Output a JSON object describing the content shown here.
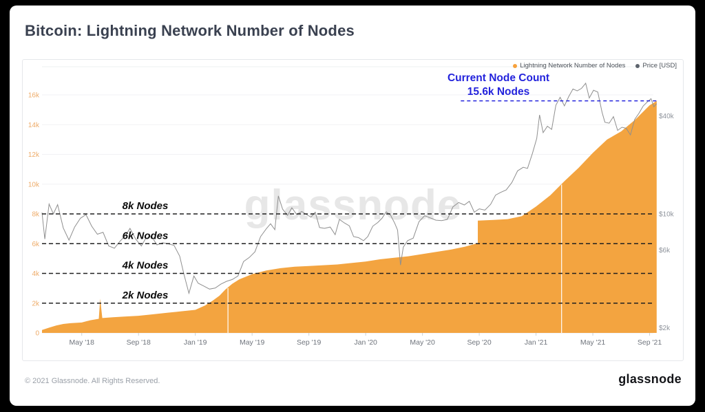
{
  "header": {
    "title": "Bitcoin: Lightning Network Number of Nodes"
  },
  "legend": {
    "items": [
      {
        "label": "Lightning Network Number of Nodes",
        "color": "#f7a13b"
      },
      {
        "label": "Price [USD]",
        "color": "#5d646d"
      }
    ]
  },
  "watermark": "glassnode",
  "annotation": {
    "line1": "Current Node Count",
    "line2": "15.6k Nodes"
  },
  "footer": {
    "copyright": "© 2021 Glassnode. All Rights Reserved.",
    "logo": "glassnode"
  },
  "chart_data": {
    "type": "area+line",
    "title": "Bitcoin: Lightning Network Number of Nodes",
    "x_unit": "months since Feb 2018",
    "colors": {
      "area": "#f3a440",
      "price_line": "#8f8f8f",
      "left_axis_text": "#eeab68",
      "right_axis_text": "#8e939b",
      "x_axis_text": "#6f747c",
      "guide_line": "#1f1f1f",
      "guide_text": "#0c0c0c",
      "annotation_blue": "#2323dc",
      "gridline": "#f1f2f4"
    },
    "x_ticks": [
      {
        "m": 2.8,
        "label": "May '18"
      },
      {
        "m": 6.8,
        "label": "Sep '18"
      },
      {
        "m": 10.8,
        "label": "Jan '19"
      },
      {
        "m": 14.8,
        "label": "May '19"
      },
      {
        "m": 18.8,
        "label": "Sep '19"
      },
      {
        "m": 22.8,
        "label": "Jan '20"
      },
      {
        "m": 26.8,
        "label": "May '20"
      },
      {
        "m": 30.8,
        "label": "Sep '20"
      },
      {
        "m": 34.8,
        "label": "Jan '21"
      },
      {
        "m": 38.8,
        "label": "May '21"
      },
      {
        "m": 42.8,
        "label": "Sep '21"
      }
    ],
    "y_left": {
      "unit": "nodes (thousands)",
      "range_k": [
        0,
        16
      ],
      "ticks": [
        {
          "v": 0,
          "label": "0"
        },
        {
          "v": 2,
          "label": "2k"
        },
        {
          "v": 4,
          "label": "4k"
        },
        {
          "v": 6,
          "label": "6k"
        },
        {
          "v": 8,
          "label": "8k"
        },
        {
          "v": 10,
          "label": "10k"
        },
        {
          "v": 12,
          "label": "12k"
        },
        {
          "v": 14,
          "label": "14k"
        },
        {
          "v": 16,
          "label": "16k"
        }
      ]
    },
    "y_right": {
      "unit": "USD",
      "scale": "log",
      "ticks": [
        {
          "usd": 2000,
          "label": "$2k"
        },
        {
          "usd": 6000,
          "label": "$6k"
        },
        {
          "usd": 10000,
          "label": "$10k"
        },
        {
          "usd": 40000,
          "label": "$40k"
        }
      ]
    },
    "node_guides": [
      {
        "v": 8,
        "label": "8k Nodes"
      },
      {
        "v": 6,
        "label": "6k Nodes"
      },
      {
        "v": 4,
        "label": "4k Nodes"
      },
      {
        "v": 2,
        "label": "2k Nodes"
      }
    ],
    "annotation": {
      "value_k": 15.6,
      "line_start_m": 29.5,
      "line_end_m": 43.45
    },
    "gaps_m": [
      13.1,
      36.6
    ],
    "series": [
      {
        "name": "Lightning Network Number of Nodes",
        "type": "area",
        "unit": "k nodes",
        "points": [
          [
            0,
            0.2
          ],
          [
            0.5,
            0.35
          ],
          [
            1,
            0.5
          ],
          [
            1.5,
            0.6
          ],
          [
            2,
            0.65
          ],
          [
            2.8,
            0.7
          ],
          [
            3.4,
            0.85
          ],
          [
            4.0,
            0.95
          ],
          [
            4.1,
            2.3
          ],
          [
            4.25,
            1.0
          ],
          [
            5,
            1.05
          ],
          [
            5.8,
            1.1
          ],
          [
            6.8,
            1.15
          ],
          [
            7.8,
            1.25
          ],
          [
            8.8,
            1.35
          ],
          [
            9.8,
            1.45
          ],
          [
            10.8,
            1.55
          ],
          [
            11.5,
            1.85
          ],
          [
            12.0,
            2.15
          ],
          [
            12.5,
            2.5
          ],
          [
            12.9,
            2.9
          ],
          [
            13.4,
            3.3
          ],
          [
            13.9,
            3.6
          ],
          [
            14.8,
            3.95
          ],
          [
            15.8,
            4.2
          ],
          [
            16.8,
            4.35
          ],
          [
            17.8,
            4.45
          ],
          [
            18.8,
            4.5
          ],
          [
            19.8,
            4.55
          ],
          [
            20.8,
            4.6
          ],
          [
            21.8,
            4.7
          ],
          [
            22.8,
            4.8
          ],
          [
            23.8,
            4.95
          ],
          [
            24.8,
            5.05
          ],
          [
            25.8,
            5.15
          ],
          [
            26.8,
            5.3
          ],
          [
            27.8,
            5.45
          ],
          [
            28.8,
            5.6
          ],
          [
            29.8,
            5.8
          ],
          [
            30.4,
            5.95
          ],
          [
            30.7,
            6.05
          ],
          [
            30.7,
            7.55
          ],
          [
            31.8,
            7.6
          ],
          [
            32.8,
            7.65
          ],
          [
            33.8,
            7.85
          ],
          [
            34.8,
            8.5
          ],
          [
            35.8,
            9.25
          ],
          [
            36.8,
            10.2
          ],
          [
            37.8,
            11.1
          ],
          [
            38.8,
            12.1
          ],
          [
            39.8,
            13.0
          ],
          [
            40.8,
            13.55
          ],
          [
            41.8,
            14.35
          ],
          [
            42.8,
            15.3
          ],
          [
            43.3,
            15.6
          ]
        ]
      },
      {
        "name": "Price [USD]",
        "type": "line",
        "unit": "USD",
        "points": [
          [
            0,
            10200
          ],
          [
            0.2,
            7000
          ],
          [
            0.5,
            11500
          ],
          [
            0.8,
            10000
          ],
          [
            1.1,
            11400
          ],
          [
            1.5,
            8200
          ],
          [
            1.9,
            6900
          ],
          [
            2.3,
            8300
          ],
          [
            2.7,
            9400
          ],
          [
            3.1,
            9900
          ],
          [
            3.5,
            8400
          ],
          [
            3.9,
            7500
          ],
          [
            4.3,
            7700
          ],
          [
            4.7,
            6350
          ],
          [
            5.1,
            6150
          ],
          [
            5.5,
            6800
          ],
          [
            5.9,
            7400
          ],
          [
            6.2,
            8150
          ],
          [
            6.6,
            7000
          ],
          [
            7.0,
            6350
          ],
          [
            7.3,
            7050
          ],
          [
            7.7,
            7300
          ],
          [
            8.1,
            6450
          ],
          [
            8.5,
            6650
          ],
          [
            8.9,
            6550
          ],
          [
            9.3,
            6400
          ],
          [
            9.7,
            5500
          ],
          [
            10.0,
            4250
          ],
          [
            10.35,
            3250
          ],
          [
            10.7,
            4150
          ],
          [
            11.0,
            3750
          ],
          [
            11.4,
            3600
          ],
          [
            11.8,
            3450
          ],
          [
            12.2,
            3500
          ],
          [
            12.6,
            3700
          ],
          [
            13.0,
            3850
          ],
          [
            13.4,
            3950
          ],
          [
            13.8,
            4150
          ],
          [
            14.2,
            5100
          ],
          [
            14.6,
            5400
          ],
          [
            15.0,
            5850
          ],
          [
            15.4,
            7250
          ],
          [
            15.8,
            8100
          ],
          [
            16.1,
            8700
          ],
          [
            16.4,
            8000
          ],
          [
            16.65,
            12900
          ],
          [
            16.95,
            10700
          ],
          [
            17.3,
            9800
          ],
          [
            17.6,
            10900
          ],
          [
            17.95,
            9900
          ],
          [
            18.3,
            10350
          ],
          [
            18.6,
            9950
          ],
          [
            18.95,
            9550
          ],
          [
            19.25,
            10250
          ],
          [
            19.55,
            8250
          ],
          [
            19.9,
            8150
          ],
          [
            20.3,
            8300
          ],
          [
            20.65,
            7450
          ],
          [
            20.95,
            9250
          ],
          [
            21.3,
            8800
          ],
          [
            21.65,
            8450
          ],
          [
            21.95,
            7250
          ],
          [
            22.3,
            7150
          ],
          [
            22.65,
            6850
          ],
          [
            22.95,
            7250
          ],
          [
            23.3,
            8400
          ],
          [
            23.65,
            8850
          ],
          [
            23.95,
            9400
          ],
          [
            24.25,
            10300
          ],
          [
            24.55,
            9850
          ],
          [
            24.85,
            8750
          ],
          [
            25.05,
            7950
          ],
          [
            25.25,
            4850
          ],
          [
            25.45,
            6250
          ],
          [
            25.75,
            6850
          ],
          [
            26.15,
            7100
          ],
          [
            26.55,
            8950
          ],
          [
            26.95,
            9750
          ],
          [
            27.35,
            9450
          ],
          [
            27.75,
            9150
          ],
          [
            28.15,
            9100
          ],
          [
            28.55,
            9250
          ],
          [
            28.95,
            11050
          ],
          [
            29.35,
            11750
          ],
          [
            29.75,
            11350
          ],
          [
            30.1,
            11950
          ],
          [
            30.45,
            10250
          ],
          [
            30.8,
            10750
          ],
          [
            31.2,
            10550
          ],
          [
            31.6,
            11450
          ],
          [
            31.95,
            13050
          ],
          [
            32.3,
            13550
          ],
          [
            32.7,
            14050
          ],
          [
            33.1,
            15600
          ],
          [
            33.5,
            18400
          ],
          [
            33.9,
            19350
          ],
          [
            34.2,
            19050
          ],
          [
            34.55,
            23600
          ],
          [
            34.85,
            29100
          ],
          [
            35.05,
            40600
          ],
          [
            35.3,
            31600
          ],
          [
            35.6,
            34600
          ],
          [
            35.9,
            33100
          ],
          [
            36.2,
            46600
          ],
          [
            36.5,
            52100
          ],
          [
            36.8,
            46100
          ],
          [
            37.1,
            52600
          ],
          [
            37.4,
            58600
          ],
          [
            37.7,
            57100
          ],
          [
            38.0,
            59100
          ],
          [
            38.3,
            63600
          ],
          [
            38.55,
            51600
          ],
          [
            38.85,
            57600
          ],
          [
            39.15,
            56100
          ],
          [
            39.45,
            42100
          ],
          [
            39.65,
            36600
          ],
          [
            39.95,
            36100
          ],
          [
            40.25,
            39600
          ],
          [
            40.55,
            32600
          ],
          [
            40.85,
            34100
          ],
          [
            41.15,
            33600
          ],
          [
            41.45,
            30600
          ],
          [
            41.75,
            38100
          ],
          [
            42.05,
            41600
          ],
          [
            42.35,
            46100
          ],
          [
            42.65,
            48900
          ],
          [
            42.9,
            51100
          ],
          [
            43.1,
            45600
          ],
          [
            43.3,
            47600
          ]
        ]
      }
    ]
  }
}
